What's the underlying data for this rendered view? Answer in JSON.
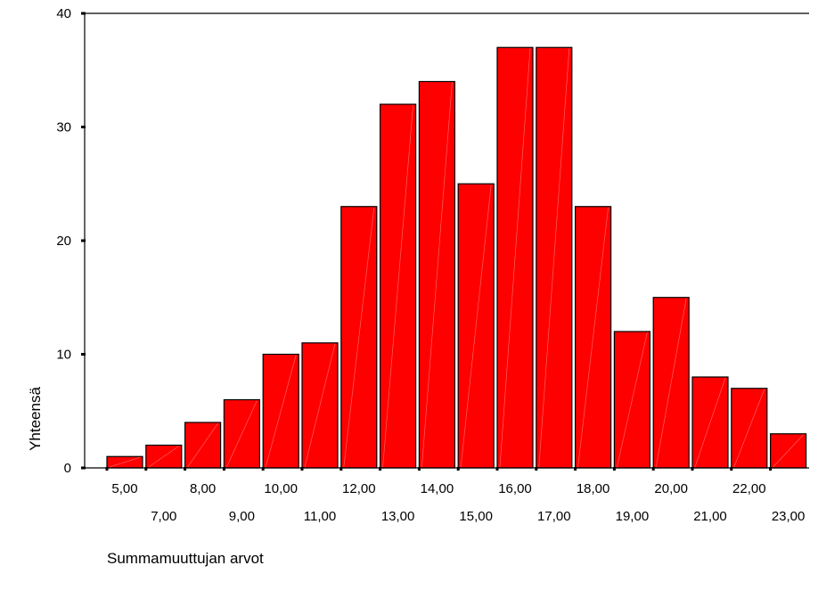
{
  "chart_data": {
    "type": "bar",
    "title": "",
    "xlabel": "Summamuuttujan arvot",
    "ylabel": "Yhteensä",
    "ylim": [
      0,
      40
    ],
    "yticks": [
      0,
      10,
      20,
      30,
      40
    ],
    "ytick_labels": [
      "0",
      "10",
      "20",
      "30",
      "40"
    ],
    "categories": [
      "5,00",
      "7,00",
      "8,00",
      "9,00",
      "10,00",
      "11,00",
      "12,00",
      "13,00",
      "14,00",
      "15,00",
      "16,00",
      "17,00",
      "18,00",
      "19,00",
      "20,00",
      "21,00",
      "22,00",
      "23,00"
    ],
    "values": [
      1,
      2,
      4,
      6,
      10,
      11,
      23,
      32,
      34,
      25,
      37,
      37,
      23,
      12,
      15,
      8,
      7,
      3
    ],
    "bar_color": "#ff0000",
    "grid": false,
    "legend": "none"
  }
}
